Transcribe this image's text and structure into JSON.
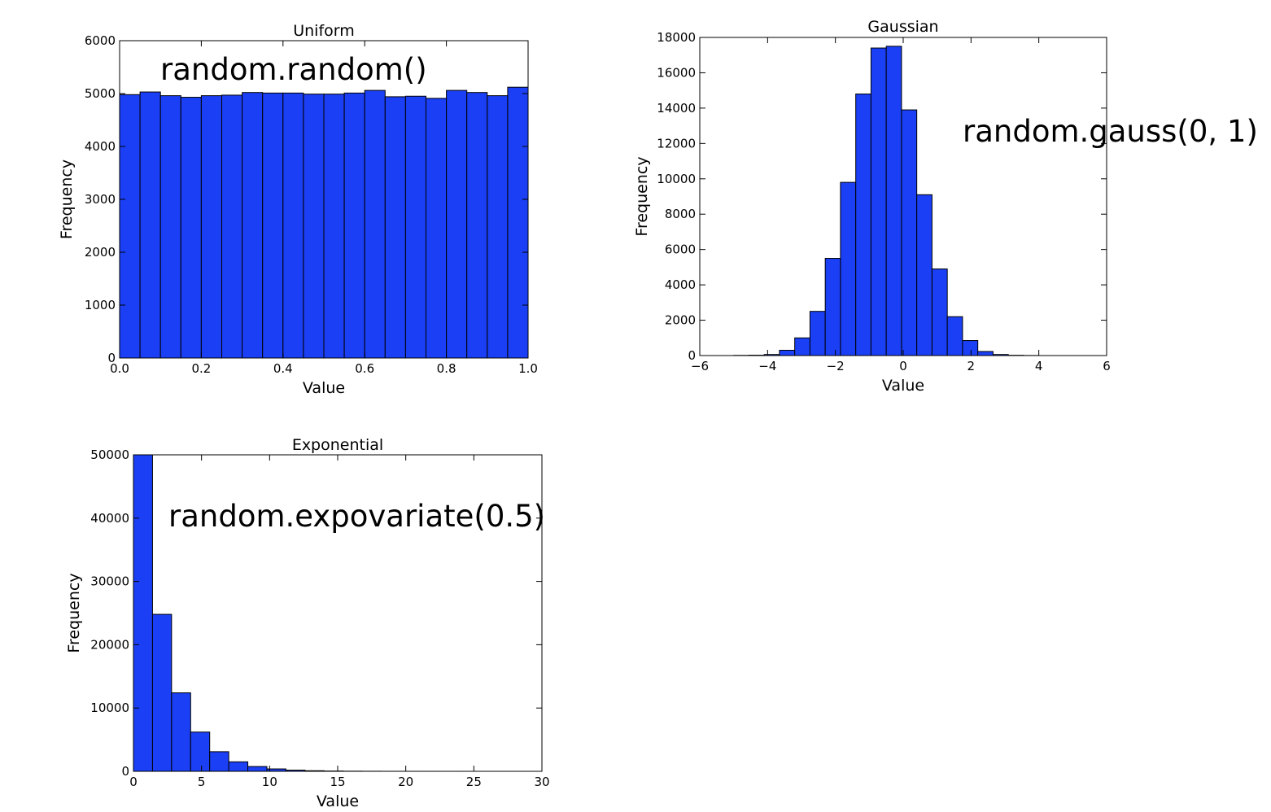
{
  "chart_data": [
    {
      "type": "bar",
      "title": "Uniform",
      "xlabel": "Value",
      "ylabel": "Frequency",
      "annotation": "random.random()",
      "xlim": [
        0.0,
        1.0
      ],
      "ylim": [
        0,
        6000
      ],
      "xticks": [
        "0.0",
        "0.2",
        "0.4",
        "0.6",
        "0.8",
        "1.0"
      ],
      "yticks": [
        "0",
        "1000",
        "2000",
        "3000",
        "4000",
        "5000",
        "6000"
      ],
      "bin_edges": [
        0.0,
        0.05,
        0.1,
        0.15,
        0.2,
        0.25,
        0.3,
        0.35,
        0.4,
        0.45,
        0.5,
        0.55,
        0.6,
        0.65,
        0.7,
        0.75,
        0.8,
        0.85,
        0.9,
        0.95,
        1.0
      ],
      "values": [
        4980,
        5030,
        4960,
        4930,
        4960,
        4970,
        5020,
        5010,
        5010,
        4990,
        4990,
        5010,
        5060,
        4940,
        4950,
        4910,
        5060,
        5020,
        4960,
        5120
      ],
      "bar_color": "#1a3ff5",
      "grid": false
    },
    {
      "type": "bar",
      "title": "Gaussian",
      "xlabel": "Value",
      "ylabel": "Frequency",
      "annotation": "random.gauss(0, 1)",
      "xlim": [
        -6,
        6
      ],
      "ylim": [
        0,
        18000
      ],
      "xticks": [
        "−6",
        "−4",
        "−2",
        "0",
        "2",
        "4",
        "6"
      ],
      "yticks": [
        "0",
        "2000",
        "4000",
        "6000",
        "8000",
        "10000",
        "12000",
        "14000",
        "16000",
        "18000"
      ],
      "bin_edges": [
        -5.0,
        -4.55,
        -4.1,
        -3.65,
        -3.2,
        -2.75,
        -2.3,
        -1.85,
        -1.4,
        -0.95,
        -0.5,
        -0.05,
        0.4,
        0.85,
        1.3,
        1.75,
        2.2,
        2.65,
        3.1,
        3.55,
        4.0
      ],
      "values": [
        10,
        20,
        60,
        300,
        1000,
        2500,
        5500,
        9800,
        14800,
        17400,
        17500,
        13900,
        9100,
        4900,
        2200,
        850,
        230,
        60,
        15,
        5
      ],
      "bar_color": "#1a3ff5",
      "grid": false
    },
    {
      "type": "bar",
      "title": "Exponential",
      "xlabel": "Value",
      "ylabel": "Frequency",
      "annotation": "random.expovariate(0.5)",
      "xlim": [
        0,
        30
      ],
      "ylim": [
        0,
        50000
      ],
      "xticks": [
        "0",
        "5",
        "10",
        "15",
        "20",
        "25",
        "30"
      ],
      "yticks": [
        "0",
        "10000",
        "20000",
        "30000",
        "40000",
        "50000"
      ],
      "bin_edges": [
        0.0,
        1.4,
        2.8,
        4.2,
        5.6,
        7.0,
        8.4,
        9.8,
        11.2,
        12.6,
        14.0,
        15.4,
        16.8,
        18.2,
        19.6,
        21.0,
        22.4,
        23.8,
        25.2,
        26.6,
        28.0
      ],
      "values": [
        50500,
        24800,
        12400,
        6200,
        3100,
        1500,
        760,
        380,
        190,
        95,
        48,
        24,
        12,
        6,
        3,
        2,
        1,
        1,
        0,
        0
      ],
      "bar_color": "#1a3ff5",
      "grid": false
    }
  ]
}
